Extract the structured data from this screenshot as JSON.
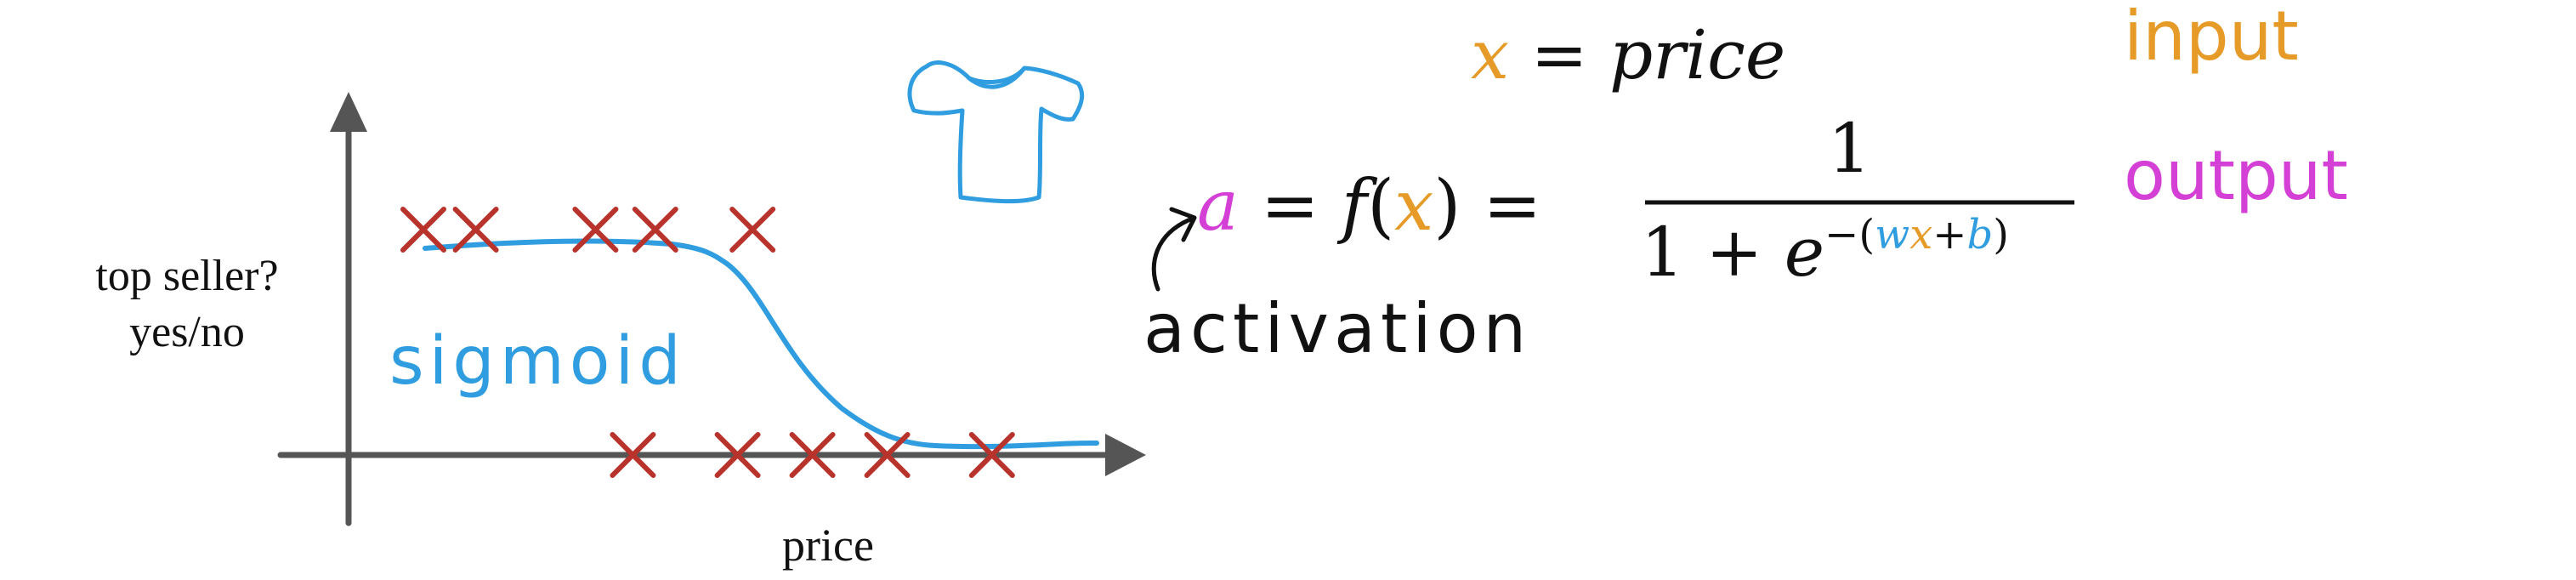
{
  "colors": {
    "red_marker": "#b8332b",
    "blue_hand": "#2f9ddf",
    "orange_x": "#e69a27",
    "magenta_a": "#d43fd6",
    "black": "#111111",
    "axis_gray": "#555555"
  },
  "plot": {
    "ylabel_line1": "top seller?",
    "ylabel_line2": "yes/no",
    "xlabel": "price",
    "curve_label": "sigmoid",
    "shirt_icon": "tshirt-icon"
  },
  "chart_data": {
    "type": "scatter",
    "xlabel": "price",
    "ylabel": "top seller? yes/no",
    "curve": "sigmoid",
    "series": [
      {
        "values": [
          [
            1.0,
            1
          ],
          [
            1.7,
            1
          ],
          [
            3.3,
            1
          ],
          [
            4.1,
            1
          ],
          [
            5.4,
            1
          ]
        ]
      },
      {
        "values": [
          [
            3.8,
            0
          ],
          [
            5.2,
            0
          ],
          [
            6.2,
            0
          ],
          [
            7.2,
            0
          ],
          [
            8.6,
            0
          ]
        ]
      }
    ],
    "xlim": [
      0,
      10
    ],
    "ylim": [
      -0.15,
      1.45
    ],
    "grid": false
  },
  "equations": {
    "line1": {
      "var": "x",
      "equals": "=",
      "rhs": "price"
    },
    "line2": {
      "a": "a",
      "eq1": "=",
      "f": "f",
      "open": "(",
      "x": "x",
      "close": ")",
      "eq2": "=",
      "numerator": "1",
      "denom_prefix": "1 + ",
      "e": "e",
      "exp_open": "−(",
      "w": "w",
      "x2": "x",
      "plus": "+",
      "b": "b",
      "exp_close": ")"
    },
    "annotation": "activation"
  },
  "legend": {
    "input": "input",
    "output": "output"
  }
}
